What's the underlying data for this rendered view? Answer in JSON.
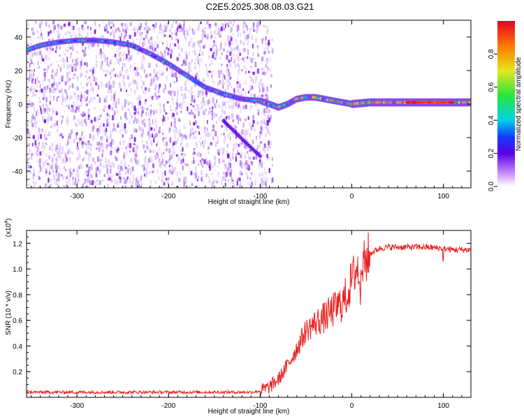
{
  "title": "C2E5.2025.308.08.03.G21",
  "colors": {
    "snr_line": "#e82020",
    "signal_bg": "#8a2be2"
  },
  "chart_data": [
    {
      "type": "heatmap",
      "name": "spectrogram",
      "xlabel": "Height of straight line (km)",
      "ylabel": "Frequency (Hz)",
      "xlim": [
        -355,
        130
      ],
      "ylim": [
        -50,
        50
      ],
      "xticks": [
        -300,
        -200,
        -100,
        0,
        100
      ],
      "xtick_labels": [
        "-300",
        "-200",
        "-100",
        "0",
        "100"
      ],
      "yticks": [
        -40,
        -20,
        0,
        20,
        40
      ],
      "ytick_labels": [
        "-40",
        "-20",
        "0",
        "20",
        "40"
      ],
      "colorbar": {
        "label": "Normalized spectral amplitude",
        "range": [
          0,
          1
        ],
        "ticks": [
          0.0,
          0.2,
          0.4,
          0.6,
          0.8
        ],
        "tick_labels": [
          "0.0",
          "0.2",
          "0.4",
          "0.6",
          "0.8"
        ]
      },
      "noise_extent_km": [
        -355,
        -95
      ],
      "signal_track": {
        "x": [
          -355,
          -340,
          -320,
          -300,
          -280,
          -260,
          -240,
          -220,
          -200,
          -180,
          -160,
          -140,
          -120,
          -100,
          -90,
          -80,
          -70,
          -60,
          -50,
          -40,
          -30,
          -20,
          -10,
          0,
          20,
          40,
          60,
          80,
          100,
          130
        ],
        "y": [
          32,
          35,
          37,
          38,
          38,
          37,
          35,
          30,
          24,
          17,
          10,
          6,
          3,
          2,
          0,
          -2,
          0,
          3,
          4,
          4,
          3,
          2,
          1,
          0,
          1,
          1,
          1,
          1,
          1,
          1
        ]
      },
      "secondary_track": {
        "x": [
          -140,
          -125,
          -110,
          -100
        ],
        "y": [
          -10,
          -18,
          -26,
          -31
        ]
      }
    },
    {
      "type": "line",
      "name": "snr",
      "xlabel": "Height of straight line (km)",
      "ylabel": "SNR (10 * v/v)",
      "yscale_label": "(x10",
      "yscale_exp": "4",
      "yscale_close": ")",
      "xlim": [
        -355,
        130
      ],
      "ylim": [
        0,
        1.3
      ],
      "xticks": [
        -300,
        -200,
        -100,
        0,
        100
      ],
      "xtick_labels": [
        "-300",
        "-200",
        "-100",
        "0",
        "100"
      ],
      "yticks": [
        0.2,
        0.4,
        0.6,
        0.8,
        1.0,
        1.2
      ],
      "ytick_labels": [
        "0.2",
        "0.4",
        "0.6",
        "0.8",
        "1.0",
        "1.2"
      ],
      "x": [
        -355,
        -300,
        -250,
        -200,
        -150,
        -110,
        -100,
        -90,
        -80,
        -70,
        -60,
        -50,
        -40,
        -30,
        -20,
        -10,
        -5,
        0,
        5,
        10,
        15,
        20,
        30,
        40,
        60,
        80,
        100,
        110,
        130
      ],
      "y": [
        0.04,
        0.04,
        0.04,
        0.04,
        0.04,
        0.04,
        0.05,
        0.08,
        0.14,
        0.25,
        0.38,
        0.52,
        0.58,
        0.62,
        0.68,
        0.74,
        0.8,
        0.92,
        1.0,
        1.0,
        1.06,
        1.12,
        1.16,
        1.17,
        1.17,
        1.17,
        1.16,
        1.15,
        1.15
      ]
    }
  ]
}
